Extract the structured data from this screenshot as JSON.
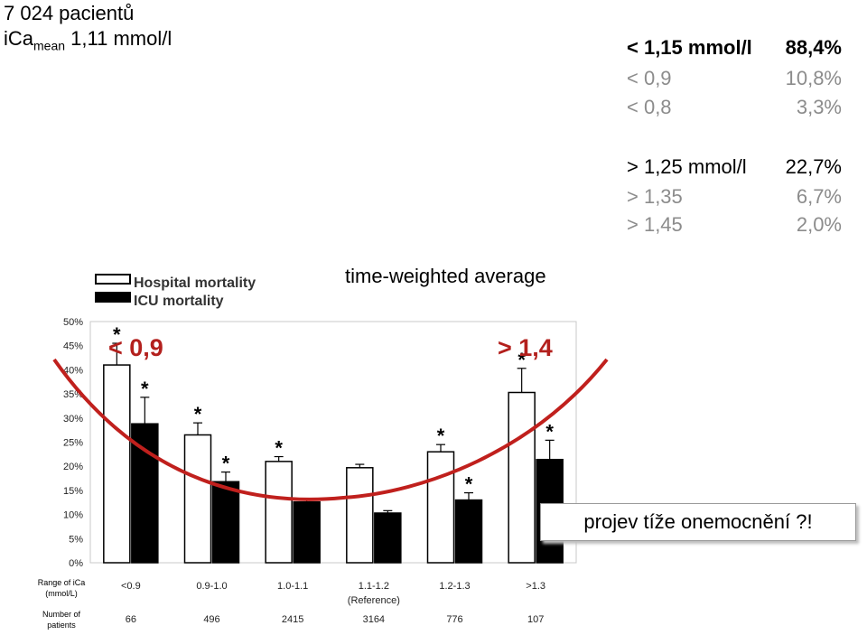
{
  "header": {
    "patients": "7 024 pacientů",
    "ica_prefix": "iCa",
    "ica_sub": "mean",
    "ica_value": "1,11 mmol/l"
  },
  "low_stats": [
    {
      "label": "< 1,15 mmol/l",
      "value": "88,4%"
    },
    {
      "label": "< 0,9",
      "value": "10,8%"
    },
    {
      "label": "< 0,8",
      "value": "3,3%"
    }
  ],
  "high_stats": [
    {
      "label": "> 1,25 mmol/l",
      "value": "22,7%"
    },
    {
      "label": "> 1,35",
      "value": "6,7%"
    },
    {
      "label": "> 1,45",
      "value": "2,0%"
    }
  ],
  "annotations": {
    "time_weighted": "time-weighted average",
    "low_zone": "< 0,9",
    "high_zone": "> 1,4",
    "callout": "projev tíže onemocnění ?!"
  },
  "colors": {
    "curve": "#c0201d",
    "hospital_fill": "#ffffff",
    "icu_fill": "#000000"
  },
  "chart_data": {
    "type": "bar",
    "ylim": [
      0,
      50
    ],
    "yticks": [
      "0%",
      "5%",
      "10%",
      "15%",
      "20%",
      "25%",
      "30%",
      "35%",
      "40%",
      "45%",
      "50%"
    ],
    "categories": [
      "<0.9",
      "0.9-1.0",
      "1.0-1.1",
      "1.1-1.2",
      "1.2-1.3",
      ">1.3"
    ],
    "category_note": "(Reference)",
    "row_label_range": "Range of iCa (mmol/L)",
    "row_label_number": "Number of patients",
    "patients": [
      "66",
      "496",
      "2415",
      "3164",
      "776",
      "107"
    ],
    "series": [
      {
        "name": "Hospital mortality",
        "values": [
          41,
          26.5,
          21,
          19.7,
          23,
          35.3
        ],
        "errors": [
          4.5,
          2.5,
          1,
          0.7,
          1.5,
          5
        ]
      },
      {
        "name": "ICU mortality",
        "values": [
          28.8,
          16.8,
          12.6,
          10.3,
          13,
          21.4
        ],
        "errors": [
          5.5,
          2,
          0.7,
          0.5,
          1.5,
          4
        ]
      }
    ],
    "significant": {
      "hospital": [
        true,
        true,
        true,
        false,
        true,
        true
      ],
      "icu": [
        true,
        true,
        false,
        false,
        true,
        true
      ]
    },
    "marker": "*",
    "grid": false,
    "legend": "top-left"
  }
}
